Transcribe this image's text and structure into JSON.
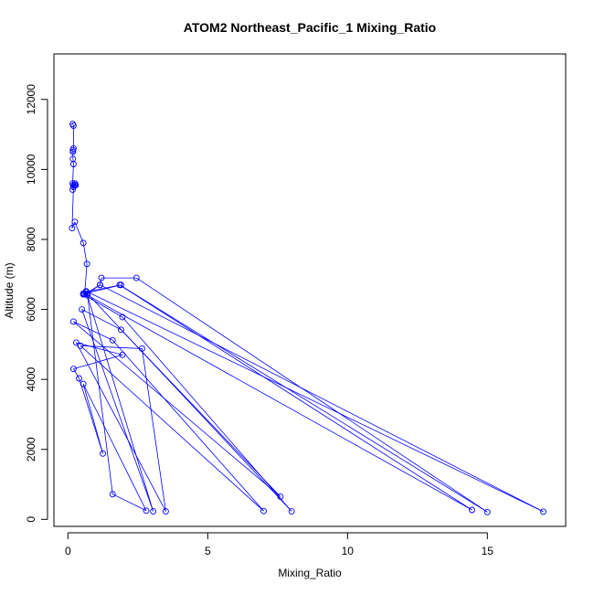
{
  "chart_data": {
    "type": "line",
    "title": "ATOM2 Northeast_Pacific_1 Mixing_Ratio",
    "xlabel": "Mixing_Ratio",
    "ylabel": "Altitude (m)",
    "xlim": [
      -0.5,
      17.8
    ],
    "ylim": [
      -200,
      13300
    ],
    "xticks": [
      0,
      5,
      10,
      15
    ],
    "yticks": [
      0,
      2000,
      4000,
      6000,
      8000,
      10000,
      12000
    ],
    "series_color": "#0000ff",
    "series": [
      {
        "x": [
          0.17,
          0.2,
          0.2,
          0.18,
          0.18,
          0.18,
          0.2,
          0.17,
          0.2,
          0.25,
          0.28,
          0.25,
          0.17,
          0.2,
          0.15,
          0.25,
          0.55,
          0.68,
          0.6,
          1.9,
          0.65,
          0.6,
          1.15,
          1.2,
          2.45,
          15.0,
          1.85,
          14.45,
          0.6,
          0.55,
          1.95,
          8.0,
          0.7,
          1.15,
          17.0,
          0.65,
          3.05,
          0.5,
          1.9,
          7.6,
          0.2,
          1.6,
          7.0,
          0.45,
          2.65,
          3.5,
          0.3,
          1.95,
          0.2,
          0.4,
          1.25,
          0.55,
          2.8,
          1.6,
          0.7,
          0.55
        ],
        "y": [
          11300,
          11250,
          10600,
          10550,
          10500,
          10300,
          10150,
          9600,
          9550,
          9600,
          9550,
          9550,
          9420,
          9500,
          8320,
          8500,
          7900,
          7300,
          6450,
          6700,
          6500,
          6430,
          6700,
          6900,
          6900,
          210,
          6700,
          270,
          6450,
          6430,
          5780,
          230,
          6450,
          6700,
          220,
          6520,
          230,
          6000,
          5420,
          650,
          5650,
          5120,
          240,
          4960,
          4880,
          230,
          5050,
          4700,
          4300,
          4030,
          1880,
          3870,
          250,
          720,
          6400,
          6450
        ]
      }
    ]
  }
}
